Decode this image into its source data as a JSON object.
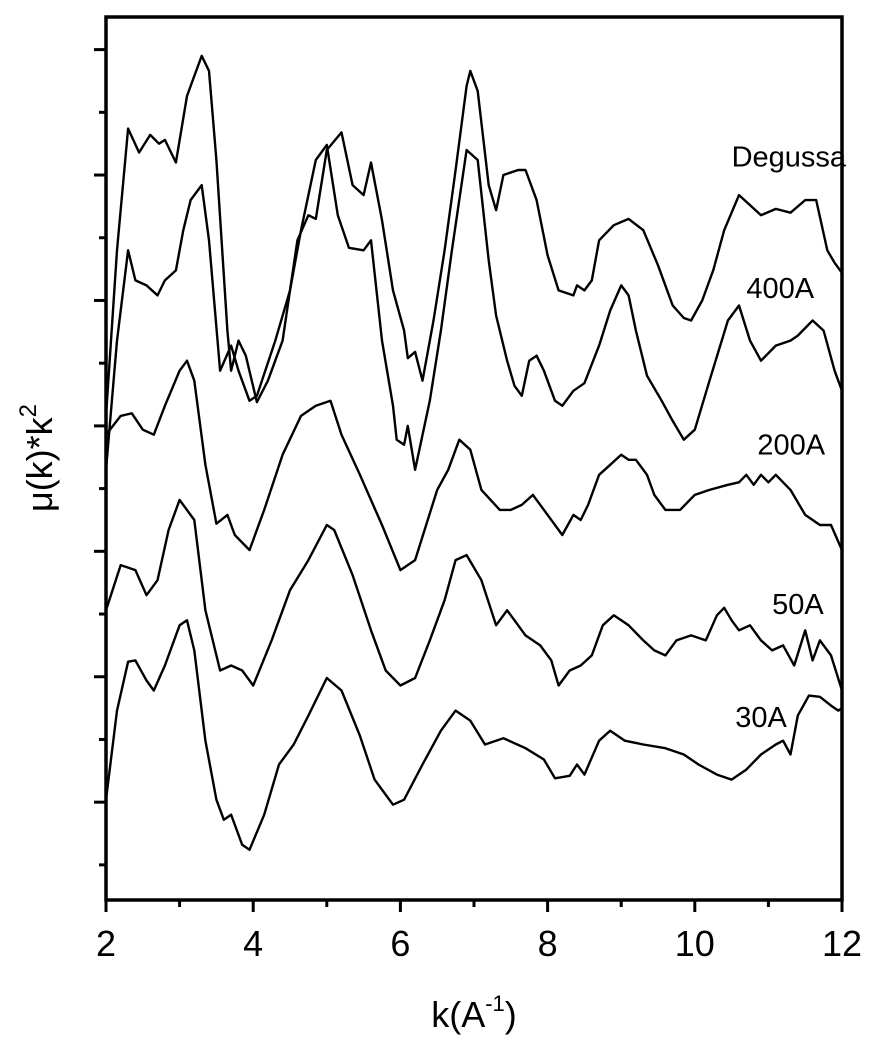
{
  "chart_data": {
    "type": "line",
    "title": "",
    "xlabel": "k(A",
    "xlabel_sup": "-1",
    "xlabel_close": ")",
    "ylabel": "μ(k)*k",
    "ylabel_sup": "2",
    "xlim": [
      2,
      12
    ],
    "ylim": [
      0,
      7.04
    ],
    "x_ticks": [
      2,
      4,
      6,
      8,
      10,
      12
    ],
    "x_tick_labels": [
      "2",
      "4",
      "6",
      "8",
      "10",
      "12"
    ],
    "x_minor_ticks": [
      3,
      5,
      7,
      9,
      11
    ],
    "y_major_ticks": [
      0.78,
      1.78,
      2.78,
      3.78,
      4.78,
      5.78,
      6.78
    ],
    "y_minor_ticks": [
      0.28,
      1.28,
      2.28,
      3.28,
      4.28,
      5.28,
      6.28
    ],
    "y_tick_labels_shown": false,
    "grid": false,
    "legend": "inline labels at right",
    "y_units": "arbitrary (curves vertically offset)",
    "series": [
      {
        "name": "Degussa",
        "label_pos": {
          "x": 10.5,
          "y": 5.85
        },
        "x": [
          2.0,
          2.15,
          2.3,
          2.45,
          2.6,
          2.72,
          2.8,
          2.95,
          3.1,
          3.2,
          3.3,
          3.4,
          3.5,
          3.65,
          3.7,
          3.8,
          3.9,
          4.05,
          4.2,
          4.4,
          4.6,
          4.75,
          4.85,
          5.0,
          5.2,
          5.35,
          5.5,
          5.6,
          5.75,
          5.9,
          6.05,
          6.1,
          6.2,
          6.3,
          6.45,
          6.6,
          6.75,
          6.9,
          6.95,
          7.05,
          7.2,
          7.3,
          7.4,
          7.6,
          7.7,
          7.85,
          8.0,
          8.15,
          8.35,
          8.4,
          8.5,
          8.6,
          8.7,
          8.9,
          9.1,
          9.3,
          9.5,
          9.7,
          9.85,
          9.95,
          10.1,
          10.25,
          10.4,
          10.6,
          10.75,
          10.9,
          11.1,
          11.3,
          11.5,
          11.65,
          11.8,
          11.9,
          12.0
        ],
        "y": [
          3.86,
          5.18,
          6.15,
          5.96,
          6.1,
          6.03,
          6.06,
          5.88,
          6.41,
          6.57,
          6.73,
          6.61,
          5.9,
          4.54,
          4.22,
          4.46,
          4.34,
          3.97,
          4.14,
          4.46,
          5.26,
          5.46,
          5.43,
          5.98,
          6.12,
          5.7,
          5.62,
          5.88,
          5.42,
          4.86,
          4.54,
          4.32,
          4.37,
          4.14,
          4.62,
          5.18,
          5.82,
          6.49,
          6.61,
          6.45,
          5.7,
          5.5,
          5.78,
          5.82,
          5.82,
          5.58,
          5.14,
          4.86,
          4.82,
          4.9,
          4.86,
          4.94,
          5.26,
          5.38,
          5.43,
          5.34,
          5.06,
          4.74,
          4.64,
          4.62,
          4.78,
          5.02,
          5.34,
          5.62,
          5.54,
          5.46,
          5.51,
          5.48,
          5.58,
          5.58,
          5.18,
          5.08,
          5.0
        ]
      },
      {
        "name": "400A",
        "label_pos": {
          "x": 10.7,
          "y": 4.8
        },
        "x": [
          2.0,
          2.15,
          2.3,
          2.4,
          2.55,
          2.7,
          2.8,
          2.95,
          3.05,
          3.15,
          3.3,
          3.4,
          3.55,
          3.7,
          3.8,
          3.95,
          4.05,
          4.3,
          4.5,
          4.65,
          4.85,
          5.0,
          5.15,
          5.3,
          5.5,
          5.6,
          5.75,
          5.9,
          5.95,
          6.05,
          6.1,
          6.2,
          6.4,
          6.55,
          6.7,
          6.9,
          7.05,
          7.2,
          7.3,
          7.45,
          7.55,
          7.65,
          7.75,
          7.85,
          7.95,
          8.1,
          8.2,
          8.35,
          8.5,
          8.7,
          8.85,
          9.0,
          9.1,
          9.2,
          9.35,
          9.55,
          9.7,
          9.85,
          10.0,
          10.2,
          10.45,
          10.6,
          10.75,
          10.9,
          11.1,
          11.3,
          11.4,
          11.6,
          11.75,
          11.9,
          12.0
        ],
        "y": [
          3.43,
          4.46,
          5.18,
          4.94,
          4.9,
          4.82,
          4.94,
          5.02,
          5.34,
          5.58,
          5.7,
          5.26,
          4.22,
          4.42,
          4.22,
          3.98,
          4.02,
          4.46,
          4.86,
          5.34,
          5.9,
          6.02,
          5.46,
          5.2,
          5.18,
          5.26,
          4.46,
          3.94,
          3.67,
          3.63,
          3.78,
          3.43,
          3.98,
          4.54,
          5.18,
          5.98,
          5.9,
          5.1,
          4.66,
          4.3,
          4.1,
          4.02,
          4.3,
          4.34,
          4.22,
          3.98,
          3.94,
          4.06,
          4.12,
          4.42,
          4.7,
          4.9,
          4.82,
          4.54,
          4.18,
          3.98,
          3.82,
          3.67,
          3.75,
          4.14,
          4.62,
          4.74,
          4.46,
          4.3,
          4.42,
          4.46,
          4.5,
          4.62,
          4.54,
          4.22,
          4.06
        ]
      },
      {
        "name": "200A",
        "label_pos": {
          "x": 10.85,
          "y": 3.55
        },
        "x": [
          2.0,
          2.2,
          2.35,
          2.5,
          2.65,
          2.8,
          3.0,
          3.1,
          3.2,
          3.35,
          3.5,
          3.65,
          3.75,
          3.95,
          4.15,
          4.4,
          4.65,
          4.85,
          5.05,
          5.2,
          5.45,
          5.75,
          6.0,
          6.2,
          6.5,
          6.65,
          6.8,
          6.95,
          7.1,
          7.35,
          7.5,
          7.65,
          7.8,
          8.0,
          8.2,
          8.35,
          8.45,
          8.55,
          8.7,
          8.85,
          9.0,
          9.1,
          9.2,
          9.35,
          9.45,
          9.6,
          9.8,
          10.0,
          10.2,
          10.45,
          10.6,
          10.7,
          10.8,
          10.9,
          11.0,
          11.1,
          11.3,
          11.5,
          11.7,
          11.85,
          12.0
        ],
        "y": [
          3.71,
          3.86,
          3.88,
          3.75,
          3.71,
          3.94,
          4.22,
          4.3,
          4.14,
          3.47,
          3.0,
          3.07,
          2.91,
          2.79,
          3.11,
          3.55,
          3.86,
          3.94,
          3.98,
          3.71,
          3.39,
          2.99,
          2.63,
          2.71,
          3.27,
          3.43,
          3.67,
          3.59,
          3.27,
          3.11,
          3.11,
          3.15,
          3.23,
          3.07,
          2.91,
          3.07,
          3.03,
          3.15,
          3.39,
          3.47,
          3.55,
          3.51,
          3.51,
          3.39,
          3.23,
          3.11,
          3.11,
          3.23,
          3.27,
          3.31,
          3.33,
          3.39,
          3.31,
          3.39,
          3.33,
          3.39,
          3.27,
          3.07,
          2.99,
          2.99,
          2.79
        ]
      },
      {
        "name": "50A",
        "label_pos": {
          "x": 11.05,
          "y": 2.28
        },
        "x": [
          2.0,
          2.2,
          2.4,
          2.55,
          2.7,
          2.85,
          3.0,
          3.2,
          3.35,
          3.55,
          3.7,
          3.85,
          4.0,
          4.25,
          4.5,
          4.75,
          5.0,
          5.1,
          5.35,
          5.6,
          5.8,
          6.0,
          6.2,
          6.4,
          6.6,
          6.75,
          6.9,
          7.1,
          7.3,
          7.45,
          7.55,
          7.7,
          7.9,
          8.05,
          8.15,
          8.3,
          8.45,
          8.6,
          8.75,
          8.9,
          9.1,
          9.3,
          9.45,
          9.6,
          9.75,
          9.95,
          10.15,
          10.3,
          10.4,
          10.5,
          10.6,
          10.75,
          10.9,
          11.05,
          11.2,
          11.35,
          11.5,
          11.6,
          11.7,
          11.85,
          12.0
        ],
        "y": [
          2.31,
          2.67,
          2.63,
          2.43,
          2.55,
          2.95,
          3.19,
          3.03,
          2.31,
          1.83,
          1.87,
          1.83,
          1.71,
          2.07,
          2.47,
          2.71,
          2.99,
          2.95,
          2.59,
          2.15,
          1.83,
          1.71,
          1.77,
          2.07,
          2.39,
          2.71,
          2.75,
          2.55,
          2.19,
          2.31,
          2.23,
          2.11,
          2.03,
          1.91,
          1.71,
          1.83,
          1.87,
          1.95,
          2.19,
          2.27,
          2.19,
          2.07,
          1.99,
          1.95,
          2.07,
          2.11,
          2.07,
          2.27,
          2.33,
          2.23,
          2.15,
          2.19,
          2.07,
          1.99,
          2.03,
          1.87,
          2.15,
          1.91,
          2.07,
          1.95,
          1.67
        ]
      },
      {
        "name": "30A",
        "label_pos": {
          "x": 10.55,
          "y": 1.38
        },
        "x": [
          2.0,
          2.15,
          2.3,
          2.4,
          2.55,
          2.65,
          2.8,
          3.0,
          3.1,
          3.2,
          3.35,
          3.5,
          3.6,
          3.7,
          3.85,
          3.95,
          4.15,
          4.35,
          4.55,
          4.75,
          5.0,
          5.2,
          5.45,
          5.65,
          5.9,
          6.05,
          6.3,
          6.55,
          6.75,
          6.95,
          7.15,
          7.4,
          7.7,
          7.95,
          8.1,
          8.3,
          8.4,
          8.5,
          8.7,
          8.85,
          9.05,
          9.3,
          9.6,
          9.85,
          10.05,
          10.3,
          10.5,
          10.7,
          10.9,
          11.1,
          11.2,
          11.3,
          11.4,
          11.55,
          11.7,
          11.85,
          11.95,
          12.0
        ],
        "y": [
          0.8,
          1.51,
          1.9,
          1.91,
          1.75,
          1.67,
          1.87,
          2.19,
          2.23,
          1.99,
          1.27,
          0.8,
          0.64,
          0.68,
          0.44,
          0.4,
          0.68,
          1.08,
          1.24,
          1.47,
          1.77,
          1.67,
          1.31,
          0.96,
          0.76,
          0.8,
          1.08,
          1.35,
          1.51,
          1.43,
          1.24,
          1.29,
          1.21,
          1.12,
          0.97,
          0.99,
          1.08,
          1.0,
          1.27,
          1.35,
          1.27,
          1.24,
          1.21,
          1.16,
          1.08,
          1.0,
          0.96,
          1.04,
          1.16,
          1.24,
          1.27,
          1.16,
          1.47,
          1.63,
          1.62,
          1.55,
          1.51,
          1.53
        ]
      }
    ]
  }
}
